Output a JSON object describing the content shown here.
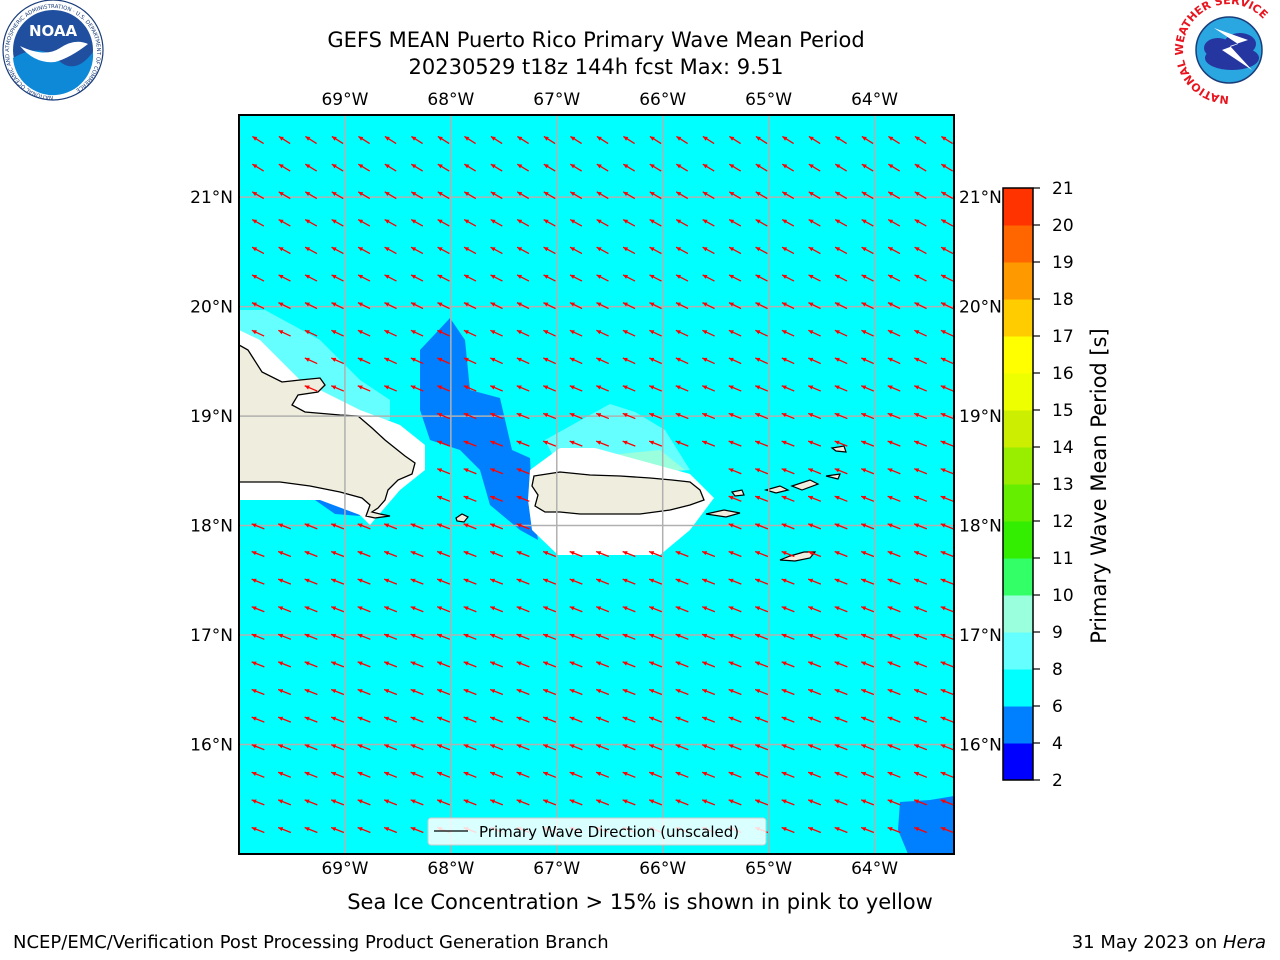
{
  "title": {
    "line1": "GEFS MEAN Puerto Rico Primary Wave Mean Period",
    "line2": "20230529 t18z 144h fcst   Max: 9.51"
  },
  "map": {
    "longitude_labels": [
      "69°W",
      "68°W",
      "67°W",
      "66°W",
      "65°W",
      "64°W"
    ],
    "latitude_labels": [
      "21°N",
      "20°N",
      "19°N",
      "18°N",
      "17°N",
      "16°N"
    ],
    "extent": {
      "lon_min": -70.0,
      "lon_max": -63.25,
      "lat_min": 15.0,
      "lat_max": 21.75
    },
    "legend_label": "Primary Wave Direction (unscaled)",
    "arrow_color": "#ff0000",
    "land_color": "#efedde",
    "dominant_period_color": "#00ffff"
  },
  "colorbar": {
    "label": "Primary Wave Mean Period [s]",
    "ticks": [
      "2",
      "4",
      "6",
      "8",
      "9",
      "10",
      "11",
      "12",
      "13",
      "14",
      "15",
      "16",
      "17",
      "18",
      "19",
      "20",
      "21"
    ],
    "colors": [
      "#0000ff",
      "#0080ff",
      "#00ffff",
      "#66ffff",
      "#99ffdd",
      "#33ff66",
      "#33ee00",
      "#66ee00",
      "#99ee00",
      "#ccee00",
      "#eeff00",
      "#ffff00",
      "#ffcc00",
      "#ff9900",
      "#ff6600",
      "#ff3300",
      "#ff0000"
    ]
  },
  "footnote": "Sea Ice Concentration > 15% is shown in pink to yellow",
  "footer": {
    "left": "NCEP/EMC/Verification Post Processing Product Generation Branch",
    "right_text": "31 May 2023 on ",
    "right_host": "Hera"
  },
  "logos": {
    "noaa_text": "NOAA",
    "noaa_ring": "NATIONAL OCEANIC AND ATMOSPHERIC ADMINISTRATION · U.S. DEPARTMENT OF COMMERCE",
    "nws_ring": "NATIONAL WEATHER SERVICE"
  }
}
